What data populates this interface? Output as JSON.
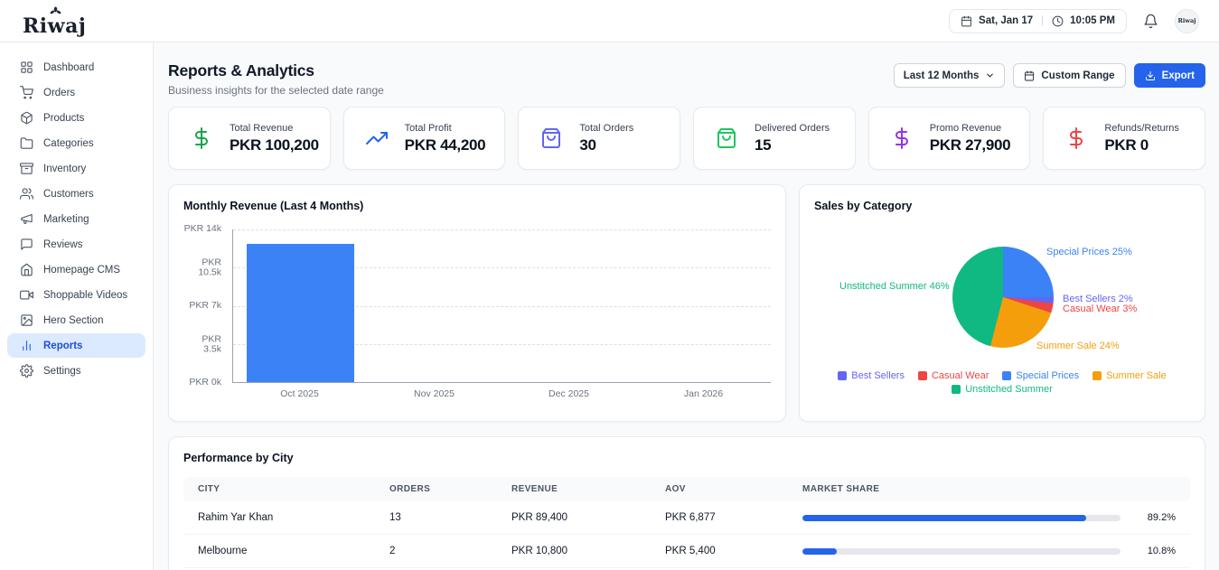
{
  "header": {
    "logo": "Riwaj",
    "date": "Sat, Jan 17",
    "time": "10:05 PM",
    "avatar_text": "Riwaj"
  },
  "sidebar": {
    "items": [
      {
        "label": "Dashboard",
        "icon": "dashboard",
        "active": false
      },
      {
        "label": "Orders",
        "icon": "cart",
        "active": false
      },
      {
        "label": "Products",
        "icon": "package",
        "active": false
      },
      {
        "label": "Categories",
        "icon": "folder",
        "active": false
      },
      {
        "label": "Inventory",
        "icon": "archive",
        "active": false
      },
      {
        "label": "Customers",
        "icon": "users",
        "active": false
      },
      {
        "label": "Marketing",
        "icon": "megaphone",
        "active": false
      },
      {
        "label": "Reviews",
        "icon": "message",
        "active": false
      },
      {
        "label": "Homepage CMS",
        "icon": "home",
        "active": false
      },
      {
        "label": "Shoppable Videos",
        "icon": "video",
        "active": false
      },
      {
        "label": "Hero Section",
        "icon": "image",
        "active": false
      },
      {
        "label": "Reports",
        "icon": "barchart",
        "active": true
      },
      {
        "label": "Settings",
        "icon": "gear",
        "active": false
      }
    ]
  },
  "page": {
    "title": "Reports & Analytics",
    "subtitle": "Business insights for the selected date range",
    "range_select_value": "Last 12 Months",
    "custom_range_label": "Custom Range",
    "export_label": "Export"
  },
  "kpis": [
    {
      "label": "Total Revenue",
      "value": "PKR 100,200",
      "icon": "dollar",
      "color": "#16a34a"
    },
    {
      "label": "Total Profit",
      "value": "PKR 44,200",
      "icon": "trend",
      "color": "#2563eb"
    },
    {
      "label": "Total Orders",
      "value": "30",
      "icon": "bag",
      "color": "#6366f1"
    },
    {
      "label": "Delivered Orders",
      "value": "15",
      "icon": "bag",
      "color": "#22c55e"
    },
    {
      "label": "Promo Revenue",
      "value": "PKR 27,900",
      "icon": "dollar",
      "color": "#9333ea"
    },
    {
      "label": "Refunds/Returns",
      "value": "PKR 0",
      "icon": "dollar",
      "color": "#ef4444"
    }
  ],
  "chart_data": [
    {
      "type": "bar",
      "title": "Monthly Revenue (Last 4 Months)",
      "categories": [
        "Oct 2025",
        "Nov 2025",
        "Dec 2025",
        "Jan 2026"
      ],
      "values": [
        12700,
        0,
        0,
        0
      ],
      "y_ticks": [
        "PKR 14k",
        "PKR 10.5k",
        "PKR 7k",
        "PKR 3.5k",
        "PKR 0k"
      ],
      "ylim": [
        0,
        14000
      ],
      "bar_color": "#3b82f6",
      "grid": "horizontal-dashed",
      "xlabel": "",
      "ylabel": ""
    },
    {
      "type": "pie",
      "title": "Sales by Category",
      "slices": [
        {
          "label": "Special Prices",
          "pct": 25,
          "color": "#3b82f6"
        },
        {
          "label": "Best Sellers",
          "pct": 2,
          "color": "#6366f1"
        },
        {
          "label": "Casual Wear",
          "pct": 3,
          "color": "#ef4444"
        },
        {
          "label": "Summer Sale",
          "pct": 24,
          "color": "#f59e0b"
        },
        {
          "label": "Unstitched Summer",
          "pct": 46,
          "color": "#10b981"
        }
      ],
      "start_angle": "top-clockwise",
      "legend_position": "bottom",
      "legend": [
        {
          "label": "Best Sellers",
          "color": "#6366f1"
        },
        {
          "label": "Casual Wear",
          "color": "#ef4444"
        },
        {
          "label": "Special Prices",
          "color": "#3b82f6"
        },
        {
          "label": "Summer Sale",
          "color": "#f59e0b"
        },
        {
          "label": "Unstitched Summer",
          "color": "#10b981"
        }
      ]
    }
  ],
  "city_table": {
    "title": "Performance by City",
    "columns": [
      "City",
      "Orders",
      "Revenue",
      "AOV",
      "Market Share"
    ],
    "rows": [
      {
        "city": "Rahim Yar Khan",
        "orders": "13",
        "revenue": "PKR 89,400",
        "aov": "PKR 6,877",
        "share_pct": 89.2,
        "share_label": "89.2%"
      },
      {
        "city": "Melbourne",
        "orders": "2",
        "revenue": "PKR 10,800",
        "aov": "PKR 5,400",
        "share_pct": 10.8,
        "share_label": "10.8%"
      }
    ]
  }
}
